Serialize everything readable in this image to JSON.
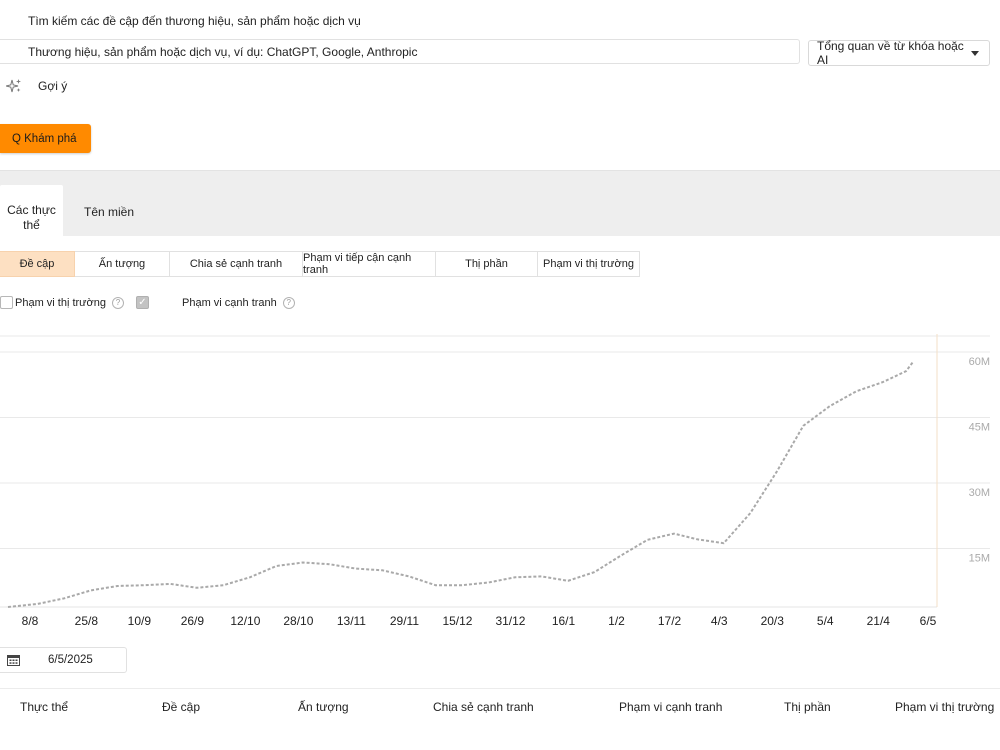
{
  "search": {
    "label": "Tìm kiếm các đề cập đến thương hiệu, sản phẩm hoặc dịch vụ",
    "placeholder": "Thương hiệu, sản phẩm hoặc dịch vụ, ví dụ: ChatGPT, Google, Anthropic",
    "mode_label": "Tổng quan về từ khóa hoặc AI"
  },
  "suggest_label": "Gợi ý",
  "explore_button": "Q Khám phá",
  "tabs": {
    "entities": "Các thực thể",
    "domains": "Tên miền"
  },
  "metric_tabs": [
    {
      "label": "Đề cập",
      "active": true
    },
    {
      "label": "Ấn tượng",
      "active": false
    },
    {
      "label": "Chia sẻ cạnh tranh",
      "active": false
    },
    {
      "label": "Phạm vi tiếp cận cạnh tranh",
      "active": false
    },
    {
      "label": "Thị phần",
      "active": false
    },
    {
      "label": "Phạm vi thị trường",
      "active": false
    }
  ],
  "checks": {
    "market_scope_label": "Phạm vi thị trường",
    "market_scope_checked": true,
    "competitive_scope_label": "Phạm vi cạnh tranh"
  },
  "chart_data": {
    "type": "line",
    "title": "",
    "xlabel": "",
    "ylabel": "",
    "x_ticks": [
      "8/8",
      "25/8",
      "10/9",
      "26/9",
      "12/10",
      "28/10",
      "13/11",
      "29/11",
      "15/12",
      "31/12",
      "16/1",
      "1/2",
      "17/2",
      "4/3",
      "20/3",
      "5/4",
      "21/4",
      "6/5"
    ],
    "y_ticks": [
      "15M",
      "30M",
      "45M",
      "60M"
    ],
    "y_tick_values": [
      15,
      30,
      45,
      60
    ],
    "ylim": [
      0,
      60
    ],
    "unit": "M",
    "grid": true,
    "series": [
      {
        "line_color": "#a9a9a9",
        "points": [
          [
            "8/8",
            0.0
          ],
          [
            "17/8",
            0.7
          ],
          [
            "25/8",
            2.0
          ],
          [
            "2/9",
            3.8
          ],
          [
            "10/9",
            4.8
          ],
          [
            "18/9",
            5.0
          ],
          [
            "26/9",
            5.3
          ],
          [
            "4/10",
            4.4
          ],
          [
            "12/10",
            5.0
          ],
          [
            "20/10",
            6.8
          ],
          [
            "28/10",
            9.4
          ],
          [
            "5/11",
            10.2
          ],
          [
            "13/11",
            9.8
          ],
          [
            "21/11",
            8.8
          ],
          [
            "29/11",
            8.4
          ],
          [
            "7/12",
            7.0
          ],
          [
            "15/12",
            5.0
          ],
          [
            "23/12",
            5.0
          ],
          [
            "31/12",
            5.6
          ],
          [
            "8/1",
            6.8
          ],
          [
            "16/1",
            7.0
          ],
          [
            "24/1",
            6.0
          ],
          [
            "1/2",
            8.0
          ],
          [
            "9/2",
            11.8
          ],
          [
            "17/2",
            15.4
          ],
          [
            "25/2",
            16.8
          ],
          [
            "4/3",
            15.5
          ],
          [
            "12/3",
            14.6
          ],
          [
            "20/3",
            21.5
          ],
          [
            "28/3",
            31.0
          ],
          [
            "5/4",
            41.5
          ],
          [
            "13/4",
            46.0
          ],
          [
            "21/4",
            49.4
          ],
          [
            "29/4",
            51.5
          ],
          [
            "6/5",
            54.0
          ],
          [
            "8/5",
            56.0
          ]
        ]
      }
    ]
  },
  "date_value": "6/5/2025",
  "table": {
    "columns": [
      "Thực thể",
      "Đề cập",
      "Ấn tượng",
      "Chia sẻ cạnh tranh",
      "Phạm vi cạnh tranh",
      "Thị phần",
      "Phạm vi thị trường"
    ]
  }
}
